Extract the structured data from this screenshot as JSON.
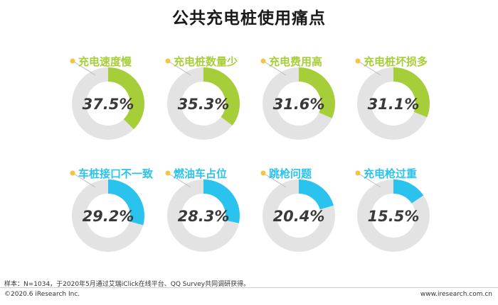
{
  "title": "公共充电桩使用痛点",
  "chart_data": {
    "type": "pie",
    "variant": "donut-grid",
    "colors": {
      "green": "#A6CE39",
      "blue": "#29C3EE",
      "track": "#E3E3E3"
    },
    "items": [
      {
        "label": "充电速度慢",
        "value": 37.5,
        "value_label": "37.5%",
        "color": "green"
      },
      {
        "label": "充电桩数量少",
        "value": 35.3,
        "value_label": "35.3%",
        "color": "green"
      },
      {
        "label": "充电费用高",
        "value": 31.6,
        "value_label": "31.6%",
        "color": "green"
      },
      {
        "label": "充电桩坏损多",
        "value": 31.1,
        "value_label": "31.1%",
        "color": "green"
      },
      {
        "label": "车桩接口不一致",
        "value": 29.2,
        "value_label": "29.2%",
        "color": "blue"
      },
      {
        "label": "燃油车占位",
        "value": 28.3,
        "value_label": "28.3%",
        "color": "blue"
      },
      {
        "label": "跳枪问题",
        "value": 20.4,
        "value_label": "20.4%",
        "color": "blue"
      },
      {
        "label": "充电枪过重",
        "value": 15.5,
        "value_label": "15.5%",
        "color": "blue"
      }
    ]
  },
  "footer": {
    "note": "样本：N=1034，于2020年5月通过艾瑞iClick在线平台、QQ Survey共同调研获得。",
    "copyright": "©2020.6 iResearch Inc.",
    "website": "www.iresearch.com.cn"
  }
}
